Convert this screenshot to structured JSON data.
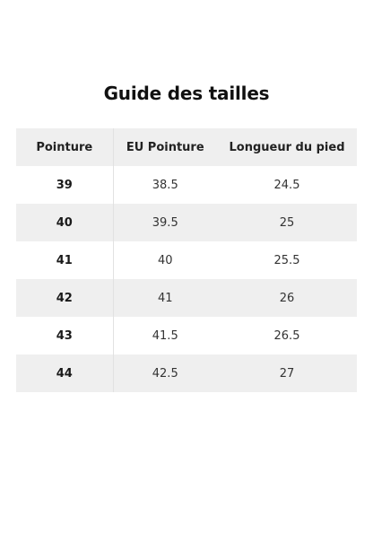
{
  "title": "Guide des tailles",
  "table": {
    "headers": [
      "Pointure",
      "EU Pointure",
      "Longueur du pied"
    ],
    "rows": [
      [
        "39",
        "38.5",
        "24.5"
      ],
      [
        "40",
        "39.5",
        "25"
      ],
      [
        "41",
        "40",
        "25.5"
      ],
      [
        "42",
        "41",
        "26"
      ],
      [
        "43",
        "41.5",
        "26.5"
      ],
      [
        "44",
        "42.5",
        "27"
      ]
    ]
  },
  "colors": {
    "stripe": "#efefef",
    "background": "#ffffff",
    "text": "#1a1a1a"
  }
}
